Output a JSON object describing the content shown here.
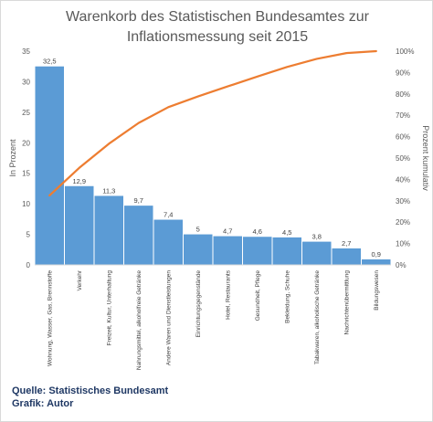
{
  "chart_data": {
    "type": "bar",
    "title_lines": [
      "Warenkorb des Statistischen Bundesamtes zur",
      "Inflationsmessung seit 2015"
    ],
    "categories": [
      "Wohnung, Wasser, Gas, Brennstoffe",
      "Verkehr",
      "Freizeit, Kultur, Unterhaltung",
      "Nahrungsmittel, alkoholfreie Getränke",
      "Andere Waren und Dienstleistungen",
      "Einrichtungsgegenstände",
      "Hotel, Restaurants",
      "Gesundheit, Pflege",
      "Bekleidung, Schuhe",
      "Tabakwaren, alkoholische Getränke",
      "Nachrichtenübermittlung",
      "Bildungswesen"
    ],
    "values": [
      32.5,
      12.9,
      11.3,
      9.7,
      7.4,
      5,
      4.7,
      4.6,
      4.5,
      3.8,
      2.7,
      0.9
    ],
    "value_labels": [
      "32,5",
      "12,9",
      "11,3",
      "9,7",
      "7,4",
      "5",
      "4,7",
      "4,6",
      "4,5",
      "3,8",
      "2,7",
      "0,9"
    ],
    "cumulative_percent": [
      32.5,
      45.4,
      56.7,
      66.4,
      73.8,
      78.8,
      83.5,
      88.1,
      92.6,
      96.4,
      99.1,
      100
    ],
    "ylabel": "In Prozent",
    "y2label": "Prozent kumulativ",
    "ylim": [
      0,
      35
    ],
    "yticks": [
      "0",
      "5",
      "10",
      "15",
      "20",
      "25",
      "30",
      "35"
    ],
    "y2lim": [
      0,
      100
    ],
    "y2ticks": [
      "0%",
      "10%",
      "20%",
      "30%",
      "40%",
      "50%",
      "60%",
      "70%",
      "80%",
      "90%",
      "100%"
    ],
    "grid": false,
    "bar_color": "#5b9bd5",
    "line_color": "#ed7d31"
  },
  "source": {
    "line1": "Quelle: Statistisches Bundesamt",
    "line2": "Grafik: Autor"
  }
}
